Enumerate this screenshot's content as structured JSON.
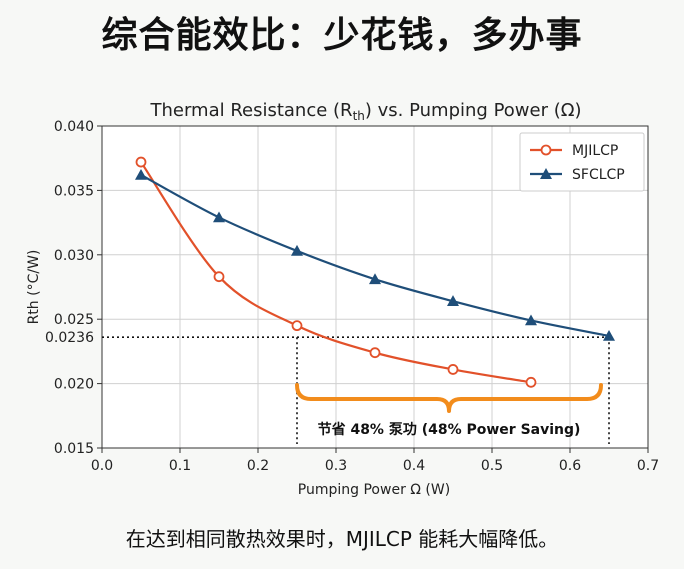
{
  "headline": "综合能效比：少花钱，多办事",
  "caption": "在达到相同散热效果时，MJILCP 能耗大幅降低。",
  "chart_data": {
    "type": "line",
    "title_main": "Thermal Resistance (R",
    "title_sub": "th",
    "title_end": ") vs. Pumping Power (Ω)",
    "xlabel": "Pumping Power Ω (W)",
    "ylabel": "Rth (°C/W)",
    "xlim": [
      0.0,
      0.7
    ],
    "ylim": [
      0.015,
      0.04
    ],
    "xticks": [
      "0.0",
      "0.1",
      "0.2",
      "0.3",
      "0.4",
      "0.5",
      "0.6",
      "0.7"
    ],
    "yticks": [
      "0.015",
      "0.020",
      "0.025",
      "0.030",
      "0.035",
      "0.040"
    ],
    "grid": true,
    "legend_position": "top-right",
    "reference_line": {
      "y": 0.0236,
      "label": "0.0236",
      "x_start": 0.25,
      "x_end": 0.65
    },
    "saving_label": "节省 48% 泵功 (48% Power Saving)",
    "series": [
      {
        "name": "MJILCP",
        "color": "#e2512a",
        "marker": "circle",
        "x": [
          0.05,
          0.15,
          0.25,
          0.35,
          0.45,
          0.55
        ],
        "y": [
          0.0372,
          0.0283,
          0.0245,
          0.0224,
          0.0211,
          0.0201
        ]
      },
      {
        "name": "SFCLCP",
        "color": "#1f4e79",
        "marker": "triangle",
        "x": [
          0.05,
          0.15,
          0.25,
          0.35,
          0.45,
          0.55,
          0.65
        ],
        "y": [
          0.0362,
          0.0329,
          0.0303,
          0.0281,
          0.0264,
          0.0249,
          0.0237
        ]
      }
    ]
  }
}
